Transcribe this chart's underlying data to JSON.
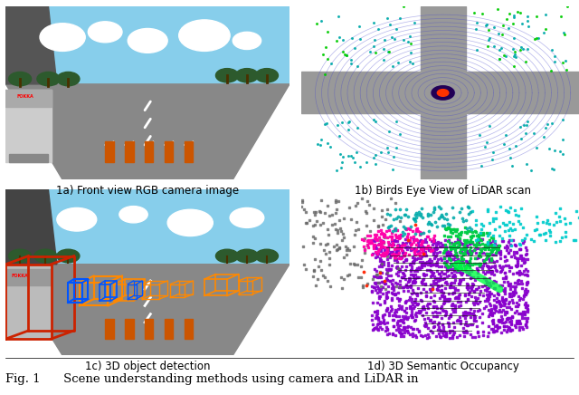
{
  "figsize": [
    6.4,
    4.36
  ],
  "dpi": 100,
  "bg_color": "#ffffff",
  "caption": "Fig. 1      Scene understanding methods using camera and LiDAR in",
  "captions": {
    "1a": "1a) Front view RGB camera image",
    "1b": "1b) Birds Eye View of LiDAR scan",
    "1c": "1c) 3D object detection",
    "1d": "1d) 3D Semantic Occupancy"
  },
  "caption_fontsize": 8.5,
  "fig_caption_fontsize": 9.5,
  "panel_bg_1a": "#7a8a6a",
  "panel_bg_1b": "#ffffff",
  "panel_bg_1c": "#6a7a5a",
  "panel_bg_1d": "#000000",
  "road_color": "#aaaaaa",
  "sky_color": "#87ceeb",
  "building_color": "#555555",
  "tree_color": "#3d6b3d",
  "truck_color": "#cccccc",
  "orange_barrier_color": "#e07030",
  "lidar_road_color": "#888888",
  "lidar_scan_color": "#5555ff",
  "lidar_point_color_outer": "#00aaaa",
  "lidar_point_color_inner": "#330066",
  "bbox_orange": "#ff8800",
  "bbox_blue": "#0055ff",
  "bbox_red": "#cc2200",
  "sem_purple": "#8800cc",
  "sem_green": "#00cc44",
  "sem_magenta": "#ff00aa",
  "sem_cyan": "#00cccc",
  "sem_gray": "#666666",
  "sem_black": "#111111"
}
